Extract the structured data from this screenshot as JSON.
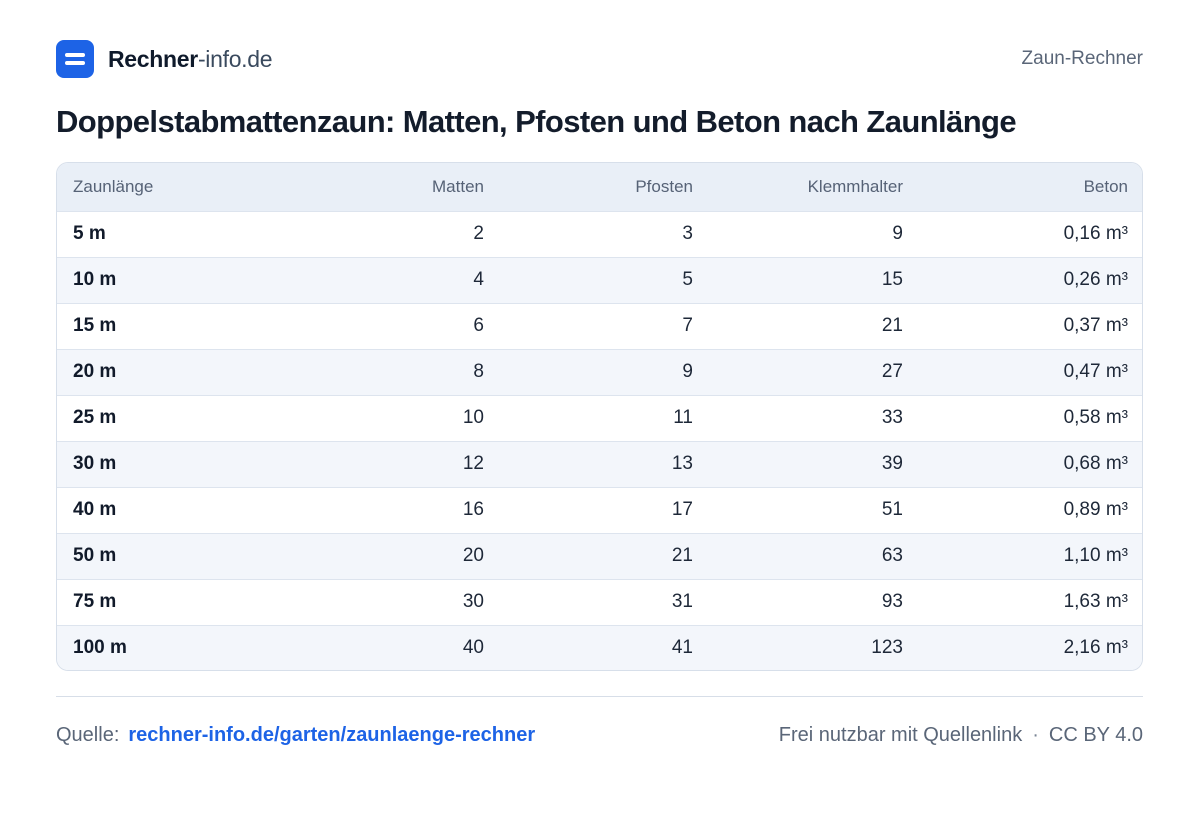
{
  "header": {
    "brand_strong": "Rechner",
    "brand_light": "-info.de",
    "top_right": "Zaun-Rechner"
  },
  "title": "Doppelstabmattenzaun: Matten, Pfosten und Beton nach Zaunlänge",
  "table": {
    "columns": [
      "Zaunlänge",
      "Matten",
      "Pfosten",
      "Klemmhalter",
      "Beton"
    ],
    "rows": [
      [
        "5 m",
        "2",
        "3",
        "9",
        "0,16 m³"
      ],
      [
        "10 m",
        "4",
        "5",
        "15",
        "0,26 m³"
      ],
      [
        "15 m",
        "6",
        "7",
        "21",
        "0,37 m³"
      ],
      [
        "20 m",
        "8",
        "9",
        "27",
        "0,47 m³"
      ],
      [
        "25 m",
        "10",
        "11",
        "33",
        "0,58 m³"
      ],
      [
        "30 m",
        "12",
        "13",
        "39",
        "0,68 m³"
      ],
      [
        "40 m",
        "16",
        "17",
        "51",
        "0,89 m³"
      ],
      [
        "50 m",
        "20",
        "21",
        "63",
        "1,10 m³"
      ],
      [
        "75 m",
        "30",
        "31",
        "93",
        "1,63 m³"
      ],
      [
        "100 m",
        "40",
        "41",
        "123",
        "2,16 m³"
      ]
    ]
  },
  "footer": {
    "source_label": "Quelle:",
    "source_link": "rechner-info.de/garten/zaunlaenge-rechner",
    "license_text": "Frei nutzbar mit Quellenlink",
    "separator": "·",
    "license": "CC BY 4.0"
  },
  "colors": {
    "accent": "#1d63e6",
    "header_row": "#e9eff7",
    "stripe_row": "#f3f6fb"
  }
}
